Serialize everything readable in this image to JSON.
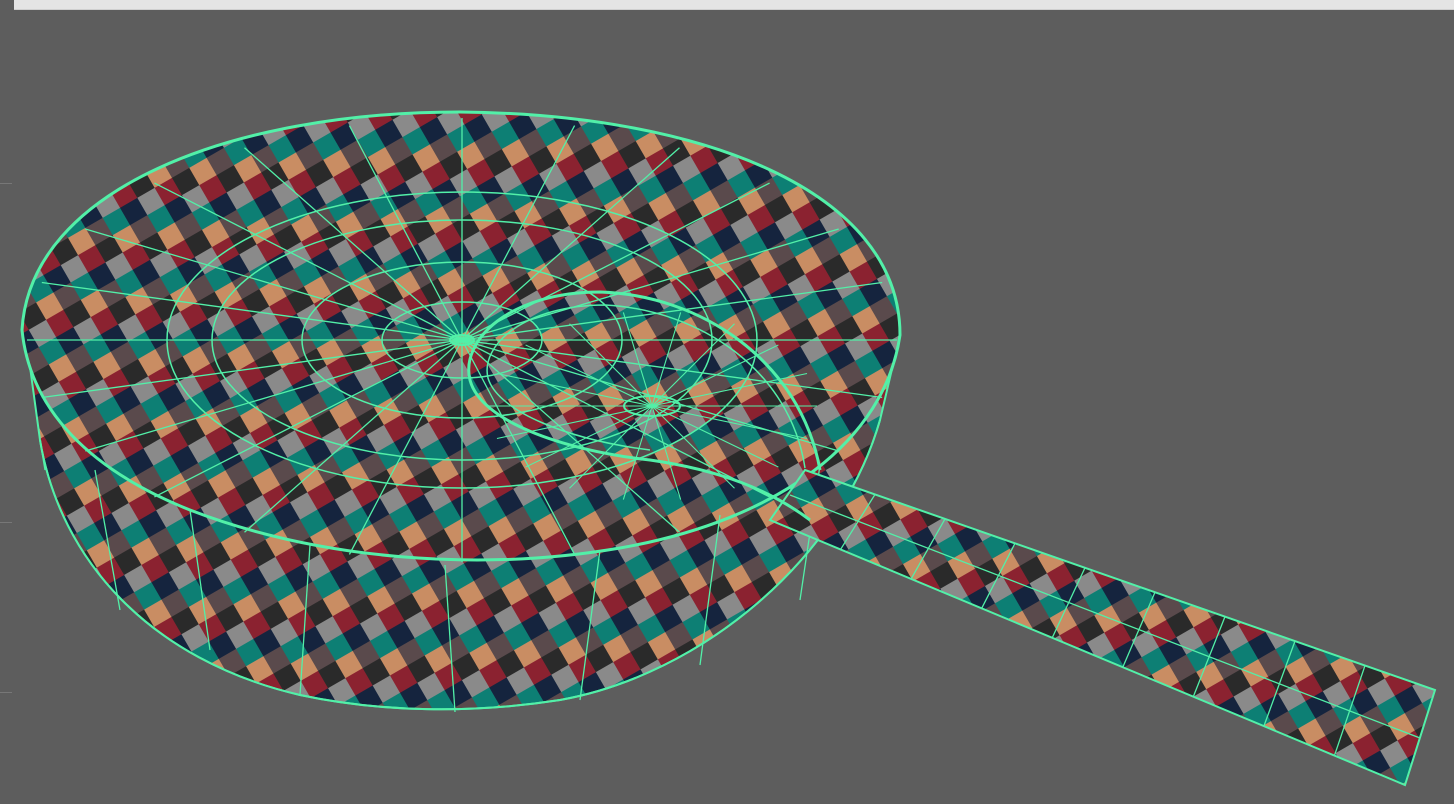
{
  "app": {
    "viewport": {
      "background": "#5d5d5d",
      "object": "frying-pan-mesh",
      "display_mode": "textured-with-wireframe",
      "wire_color": "#52f0a8",
      "texture": "uv-checker",
      "checker_colors": [
        "#2a2a2a",
        "#8a8a8a",
        "#0d7f74",
        "#c98d63",
        "#8b2230",
        "#15243e",
        "#5a4a4c"
      ]
    },
    "top_strip": {
      "color": "#e4e4e4"
    }
  }
}
